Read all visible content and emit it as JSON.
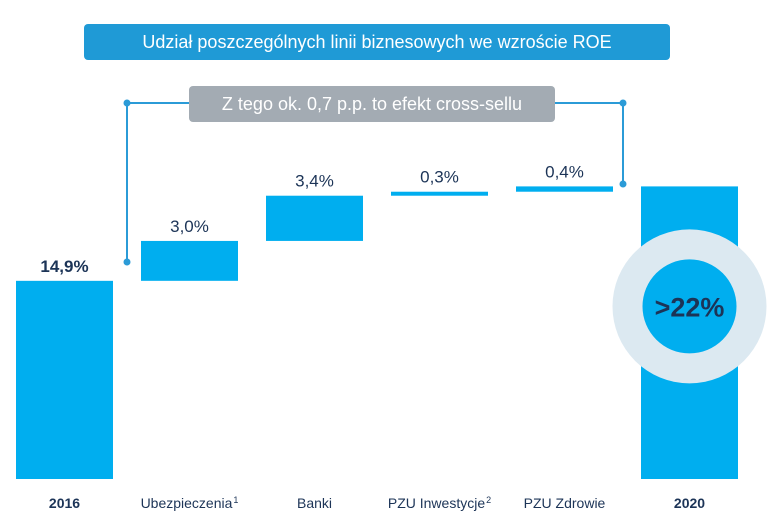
{
  "chart_data": {
    "type": "waterfall",
    "title": "Udział poszczególnych linii biznesowych we wzroście ROE",
    "annotation": "Z tego ok. 0,7 p.p. to efekt cross-sellu",
    "unit": "%",
    "colors": {
      "bar": "#00aeef",
      "text": "#1c3457",
      "ring": "#dce9f1",
      "bracket": "#2b9bd7"
    },
    "items": [
      {
        "category": "2016",
        "footnote": "",
        "kind": "total",
        "value": 14.9,
        "label": "14,9%"
      },
      {
        "category": "Ubezpieczenia",
        "footnote": "1",
        "kind": "delta",
        "value": 3.0,
        "label": "3,0%"
      },
      {
        "category": "Banki",
        "footnote": "",
        "kind": "delta",
        "value": 3.4,
        "label": "3,4%"
      },
      {
        "category": "PZU Inwestycje",
        "footnote": "2",
        "kind": "delta",
        "value": 0.3,
        "label": "0,3%"
      },
      {
        "category": "PZU Zdrowie",
        "footnote": "",
        "kind": "delta",
        "value": 0.4,
        "label": "0,4%"
      },
      {
        "category": "2020",
        "footnote": "",
        "kind": "total",
        "value": 22.0,
        "label": ">22%"
      }
    ]
  }
}
